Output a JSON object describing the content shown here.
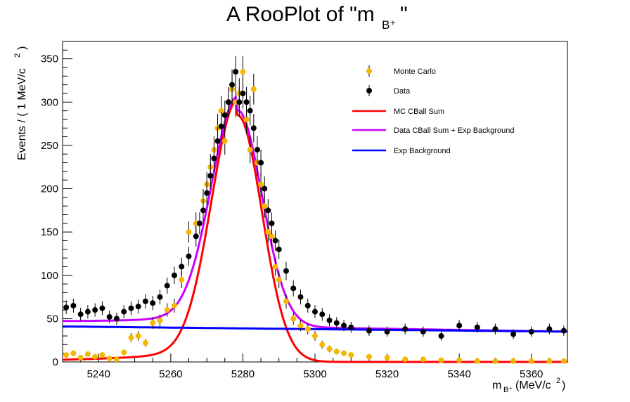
{
  "chart_data": {
    "type": "scatter",
    "title": "A RooPlot of \"m B⁺\"",
    "xlabel": "m B⁺ (MeV/c²)",
    "ylabel": "Events / ( 1 MeV/c² )",
    "xlim": [
      5230,
      5370
    ],
    "ylim": [
      0,
      370
    ],
    "xticks": [
      5240,
      5260,
      5280,
      5300,
      5320,
      5340,
      5360
    ],
    "yticks": [
      0,
      50,
      100,
      150,
      200,
      250,
      300,
      350
    ],
    "grid": false,
    "legend_position": "top-right",
    "series": [
      {
        "name": "Monte Carlo",
        "kind": "points",
        "color": "#f5b800",
        "x": [
          5231,
          5233,
          5235,
          5237,
          5239,
          5241,
          5243,
          5245,
          5247,
          5249,
          5251,
          5253,
          5255,
          5257,
          5259,
          5261,
          5263,
          5265,
          5267,
          5269,
          5270,
          5271,
          5272,
          5273,
          5274,
          5275,
          5276,
          5277,
          5278,
          5279,
          5280,
          5281,
          5282,
          5283,
          5284,
          5285,
          5286,
          5287,
          5288,
          5289,
          5290,
          5292,
          5294,
          5296,
          5298,
          5300,
          5302,
          5304,
          5306,
          5308,
          5310,
          5315,
          5320,
          5325,
          5330,
          5335,
          5340,
          5345,
          5350,
          5355,
          5360,
          5365,
          5369
        ],
        "y": [
          8,
          10,
          5,
          9,
          6,
          8,
          4,
          3,
          11,
          28,
          30,
          22,
          45,
          48,
          60,
          65,
          95,
          150,
          160,
          186,
          205,
          225,
          245,
          270,
          290,
          255,
          300,
          315,
          300,
          310,
          335,
          280,
          245,
          315,
          230,
          205,
          180,
          150,
          145,
          110,
          95,
          70,
          50,
          42,
          38,
          30,
          20,
          15,
          12,
          10,
          8,
          6,
          5,
          3,
          3,
          2,
          2,
          1,
          1,
          1,
          1,
          1,
          1
        ]
      },
      {
        "name": "Data",
        "kind": "points",
        "color": "#000000",
        "x": [
          5231,
          5233,
          5235,
          5237,
          5239,
          5241,
          5243,
          5245,
          5247,
          5249,
          5251,
          5253,
          5255,
          5257,
          5259,
          5261,
          5263,
          5265,
          5267,
          5268,
          5269,
          5270,
          5271,
          5272,
          5273,
          5274,
          5275,
          5276,
          5277,
          5278,
          5279,
          5280,
          5281,
          5282,
          5283,
          5284,
          5285,
          5286,
          5287,
          5288,
          5289,
          5290,
          5292,
          5294,
          5296,
          5298,
          5300,
          5302,
          5304,
          5306,
          5308,
          5310,
          5315,
          5320,
          5325,
          5330,
          5335,
          5340,
          5345,
          5350,
          5355,
          5360,
          5365,
          5369
        ],
        "y": [
          63,
          65,
          55,
          58,
          60,
          62,
          52,
          50,
          58,
          62,
          64,
          70,
          68,
          75,
          88,
          100,
          110,
          122,
          145,
          160,
          175,
          195,
          215,
          235,
          255,
          272,
          285,
          300,
          320,
          335,
          300,
          310,
          300,
          290,
          270,
          245,
          230,
          200,
          175,
          160,
          140,
          130,
          105,
          85,
          75,
          65,
          58,
          55,
          48,
          45,
          42,
          40,
          36,
          35,
          38,
          35,
          30,
          42,
          40,
          38,
          32,
          35,
          38,
          36
        ]
      },
      {
        "name": "MC CBall Sum",
        "kind": "curve",
        "color": "#ff0000",
        "peak_x": 5278.5,
        "peak_y": 297,
        "baseline": 0
      },
      {
        "name": "Data CBall Sum + Exp Background",
        "kind": "curve",
        "color": "#cc00ff",
        "peak_x": 5278.5,
        "peak_y": 300,
        "baseline_start": 45,
        "baseline_end": 35
      },
      {
        "name": "Exp Background",
        "kind": "curve",
        "color": "#0000ff",
        "y_start": 41,
        "y_end": 35
      }
    ]
  }
}
